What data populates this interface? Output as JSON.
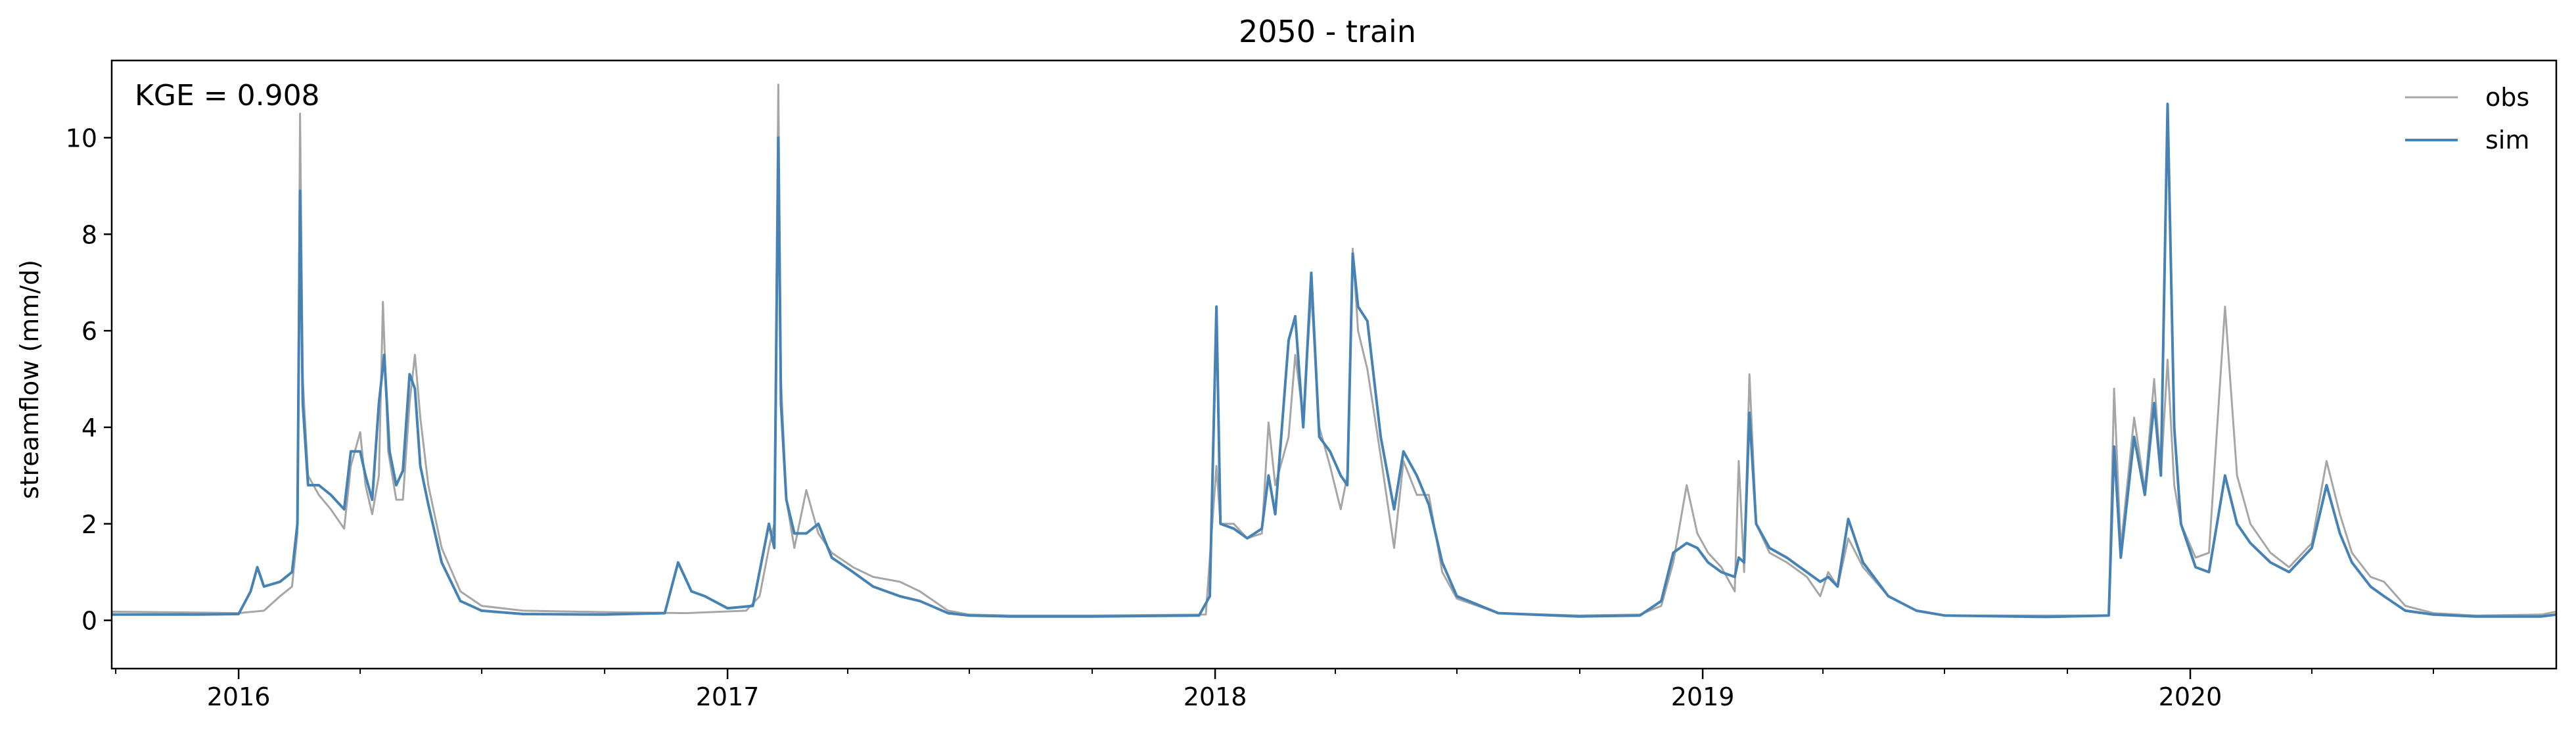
{
  "chart_data": {
    "type": "line",
    "title": "2050 - train",
    "ylabel": "streamflow (mm/d)",
    "xlabel": "",
    "annotation": "KGE = 0.908",
    "xlim": [
      "2015-09-28",
      "2020-10-01"
    ],
    "ylim": [
      -1,
      11.6
    ],
    "yticks": [
      0,
      2,
      4,
      6,
      8,
      10
    ],
    "xticks": [
      {
        "date": "2016-01-01",
        "label": "2016"
      },
      {
        "date": "2017-01-01",
        "label": "2017"
      },
      {
        "date": "2018-01-01",
        "label": "2018"
      },
      {
        "date": "2019-01-01",
        "label": "2019"
      },
      {
        "date": "2020-01-01",
        "label": "2020"
      }
    ],
    "grid": false,
    "legend_position": "top-right",
    "series": [
      {
        "name": "obs",
        "color": "#a6a6a6",
        "points": [
          [
            "2015-09-28",
            0.18
          ],
          [
            "2015-11-01",
            0.17
          ],
          [
            "2015-12-01",
            0.16
          ],
          [
            "2016-01-01",
            0.15
          ],
          [
            "2016-01-20",
            0.2
          ],
          [
            "2016-02-01",
            0.5
          ],
          [
            "2016-02-10",
            0.7
          ],
          [
            "2016-02-14",
            1.8
          ],
          [
            "2016-02-16",
            10.5
          ],
          [
            "2016-02-18",
            5.0
          ],
          [
            "2016-02-22",
            3.0
          ],
          [
            "2016-03-01",
            2.6
          ],
          [
            "2016-03-10",
            2.3
          ],
          [
            "2016-03-20",
            1.9
          ],
          [
            "2016-03-25",
            3.2
          ],
          [
            "2016-04-01",
            3.9
          ],
          [
            "2016-04-05",
            2.8
          ],
          [
            "2016-04-10",
            2.2
          ],
          [
            "2016-04-15",
            3.0
          ],
          [
            "2016-04-18",
            6.6
          ],
          [
            "2016-04-22",
            3.5
          ],
          [
            "2016-04-28",
            2.5
          ],
          [
            "2016-05-03",
            2.5
          ],
          [
            "2016-05-08",
            4.5
          ],
          [
            "2016-05-12",
            5.5
          ],
          [
            "2016-05-16",
            4.2
          ],
          [
            "2016-05-22",
            2.8
          ],
          [
            "2016-06-01",
            1.5
          ],
          [
            "2016-06-15",
            0.6
          ],
          [
            "2016-07-01",
            0.3
          ],
          [
            "2016-08-01",
            0.2
          ],
          [
            "2016-10-01",
            0.17
          ],
          [
            "2016-12-01",
            0.15
          ],
          [
            "2017-01-15",
            0.2
          ],
          [
            "2017-01-25",
            0.5
          ],
          [
            "2017-02-01",
            1.5
          ],
          [
            "2017-02-05",
            2.0
          ],
          [
            "2017-02-08",
            11.1
          ],
          [
            "2017-02-10",
            5.0
          ],
          [
            "2017-02-14",
            2.5
          ],
          [
            "2017-02-20",
            1.5
          ],
          [
            "2017-03-01",
            2.7
          ],
          [
            "2017-03-10",
            1.8
          ],
          [
            "2017-03-20",
            1.4
          ],
          [
            "2017-04-05",
            1.1
          ],
          [
            "2017-04-20",
            0.9
          ],
          [
            "2017-05-10",
            0.8
          ],
          [
            "2017-05-25",
            0.6
          ],
          [
            "2017-06-15",
            0.2
          ],
          [
            "2017-07-01",
            0.12
          ],
          [
            "2017-08-01",
            0.1
          ],
          [
            "2017-10-01",
            0.1
          ],
          [
            "2017-12-25",
            0.12
          ],
          [
            "2018-01-02",
            3.2
          ],
          [
            "2018-01-05",
            2.0
          ],
          [
            "2018-01-15",
            2.0
          ],
          [
            "2018-01-25",
            1.7
          ],
          [
            "2018-02-05",
            1.8
          ],
          [
            "2018-02-10",
            4.1
          ],
          [
            "2018-02-15",
            2.8
          ],
          [
            "2018-02-25",
            3.8
          ],
          [
            "2018-03-02",
            5.5
          ],
          [
            "2018-03-08",
            4.2
          ],
          [
            "2018-03-14",
            6.8
          ],
          [
            "2018-03-20",
            4.0
          ],
          [
            "2018-03-28",
            3.2
          ],
          [
            "2018-04-05",
            2.3
          ],
          [
            "2018-04-10",
            3.0
          ],
          [
            "2018-04-14",
            7.7
          ],
          [
            "2018-04-18",
            6.0
          ],
          [
            "2018-04-25",
            5.2
          ],
          [
            "2018-05-05",
            3.4
          ],
          [
            "2018-05-15",
            1.5
          ],
          [
            "2018-05-22",
            3.3
          ],
          [
            "2018-06-01",
            2.6
          ],
          [
            "2018-06-10",
            2.6
          ],
          [
            "2018-06-20",
            1.0
          ],
          [
            "2018-07-01",
            0.45
          ],
          [
            "2018-08-01",
            0.15
          ],
          [
            "2018-10-01",
            0.1
          ],
          [
            "2018-11-15",
            0.12
          ],
          [
            "2018-12-01",
            0.3
          ],
          [
            "2018-12-10",
            1.2
          ],
          [
            "2018-12-20",
            2.8
          ],
          [
            "2018-12-28",
            1.8
          ],
          [
            "2019-01-05",
            1.4
          ],
          [
            "2019-01-15",
            1.1
          ],
          [
            "2019-01-25",
            0.6
          ],
          [
            "2019-01-28",
            3.3
          ],
          [
            "2019-02-01",
            1.0
          ],
          [
            "2019-02-05",
            5.1
          ],
          [
            "2019-02-10",
            2.0
          ],
          [
            "2019-02-20",
            1.4
          ],
          [
            "2019-03-05",
            1.2
          ],
          [
            "2019-03-20",
            0.9
          ],
          [
            "2019-03-30",
            0.5
          ],
          [
            "2019-04-05",
            1.0
          ],
          [
            "2019-04-12",
            0.7
          ],
          [
            "2019-04-20",
            1.7
          ],
          [
            "2019-05-01",
            1.1
          ],
          [
            "2019-05-20",
            0.5
          ],
          [
            "2019-06-10",
            0.2
          ],
          [
            "2019-07-01",
            0.1
          ],
          [
            "2019-09-15",
            0.1
          ],
          [
            "2019-11-01",
            0.1
          ],
          [
            "2019-11-05",
            4.8
          ],
          [
            "2019-11-10",
            1.5
          ],
          [
            "2019-11-20",
            4.2
          ],
          [
            "2019-11-28",
            2.7
          ],
          [
            "2019-12-05",
            5.0
          ],
          [
            "2019-12-10",
            3.0
          ],
          [
            "2019-12-15",
            5.4
          ],
          [
            "2019-12-20",
            2.8
          ],
          [
            "2019-12-25",
            2.0
          ],
          [
            "2020-01-05",
            1.3
          ],
          [
            "2020-01-15",
            1.4
          ],
          [
            "2020-01-27",
            6.5
          ],
          [
            "2020-02-05",
            3.0
          ],
          [
            "2020-02-15",
            2.0
          ],
          [
            "2020-03-01",
            1.4
          ],
          [
            "2020-03-15",
            1.1
          ],
          [
            "2020-04-01",
            1.6
          ],
          [
            "2020-04-12",
            3.3
          ],
          [
            "2020-04-22",
            2.2
          ],
          [
            "2020-05-01",
            1.4
          ],
          [
            "2020-05-15",
            0.9
          ],
          [
            "2020-05-25",
            0.8
          ],
          [
            "2020-06-10",
            0.3
          ],
          [
            "2020-07-01",
            0.15
          ],
          [
            "2020-08-01",
            0.1
          ],
          [
            "2020-09-20",
            0.12
          ],
          [
            "2020-10-01",
            0.18
          ]
        ]
      },
      {
        "name": "sim",
        "color": "#4682b4",
        "points": [
          [
            "2015-09-28",
            0.12
          ],
          [
            "2015-11-01",
            0.12
          ],
          [
            "2015-12-01",
            0.12
          ],
          [
            "2016-01-01",
            0.13
          ],
          [
            "2016-01-10",
            0.6
          ],
          [
            "2016-01-15",
            1.1
          ],
          [
            "2016-01-20",
            0.7
          ],
          [
            "2016-02-01",
            0.8
          ],
          [
            "2016-02-10",
            1.0
          ],
          [
            "2016-02-14",
            2.0
          ],
          [
            "2016-02-16",
            8.9
          ],
          [
            "2016-02-18",
            4.5
          ],
          [
            "2016-02-22",
            2.8
          ],
          [
            "2016-03-01",
            2.8
          ],
          [
            "2016-03-10",
            2.6
          ],
          [
            "2016-03-20",
            2.3
          ],
          [
            "2016-03-25",
            3.5
          ],
          [
            "2016-04-01",
            3.5
          ],
          [
            "2016-04-05",
            3.0
          ],
          [
            "2016-04-10",
            2.5
          ],
          [
            "2016-04-15",
            4.5
          ],
          [
            "2016-04-19",
            5.5
          ],
          [
            "2016-04-23",
            3.5
          ],
          [
            "2016-04-28",
            2.8
          ],
          [
            "2016-05-03",
            3.1
          ],
          [
            "2016-05-08",
            5.1
          ],
          [
            "2016-05-12",
            4.8
          ],
          [
            "2016-05-16",
            3.2
          ],
          [
            "2016-05-22",
            2.4
          ],
          [
            "2016-06-01",
            1.2
          ],
          [
            "2016-06-15",
            0.4
          ],
          [
            "2016-07-01",
            0.2
          ],
          [
            "2016-08-01",
            0.13
          ],
          [
            "2016-10-01",
            0.12
          ],
          [
            "2016-11-15",
            0.15
          ],
          [
            "2016-11-25",
            1.2
          ],
          [
            "2016-12-05",
            0.6
          ],
          [
            "2016-12-15",
            0.5
          ],
          [
            "2017-01-01",
            0.25
          ],
          [
            "2017-01-20",
            0.3
          ],
          [
            "2017-02-01",
            2.0
          ],
          [
            "2017-02-05",
            1.5
          ],
          [
            "2017-02-08",
            10.0
          ],
          [
            "2017-02-10",
            4.5
          ],
          [
            "2017-02-14",
            2.5
          ],
          [
            "2017-02-20",
            1.8
          ],
          [
            "2017-03-01",
            1.8
          ],
          [
            "2017-03-10",
            2.0
          ],
          [
            "2017-03-20",
            1.3
          ],
          [
            "2017-04-05",
            1.0
          ],
          [
            "2017-04-20",
            0.7
          ],
          [
            "2017-05-10",
            0.5
          ],
          [
            "2017-05-25",
            0.4
          ],
          [
            "2017-06-15",
            0.15
          ],
          [
            "2017-07-01",
            0.1
          ],
          [
            "2017-08-01",
            0.08
          ],
          [
            "2017-10-01",
            0.08
          ],
          [
            "2017-12-20",
            0.1
          ],
          [
            "2017-12-28",
            0.5
          ],
          [
            "2018-01-02",
            6.5
          ],
          [
            "2018-01-05",
            2.0
          ],
          [
            "2018-01-15",
            1.9
          ],
          [
            "2018-01-25",
            1.7
          ],
          [
            "2018-02-05",
            1.9
          ],
          [
            "2018-02-10",
            3.0
          ],
          [
            "2018-02-15",
            2.2
          ],
          [
            "2018-02-25",
            5.8
          ],
          [
            "2018-03-02",
            6.3
          ],
          [
            "2018-03-08",
            4.0
          ],
          [
            "2018-03-14",
            7.2
          ],
          [
            "2018-03-20",
            3.8
          ],
          [
            "2018-03-28",
            3.5
          ],
          [
            "2018-04-05",
            3.0
          ],
          [
            "2018-04-10",
            2.8
          ],
          [
            "2018-04-14",
            7.6
          ],
          [
            "2018-04-18",
            6.5
          ],
          [
            "2018-04-25",
            6.2
          ],
          [
            "2018-05-05",
            3.8
          ],
          [
            "2018-05-15",
            2.3
          ],
          [
            "2018-05-22",
            3.5
          ],
          [
            "2018-06-01",
            3.0
          ],
          [
            "2018-06-10",
            2.4
          ],
          [
            "2018-06-20",
            1.2
          ],
          [
            "2018-07-01",
            0.5
          ],
          [
            "2018-08-01",
            0.15
          ],
          [
            "2018-10-01",
            0.08
          ],
          [
            "2018-11-15",
            0.1
          ],
          [
            "2018-12-01",
            0.4
          ],
          [
            "2018-12-10",
            1.4
          ],
          [
            "2018-12-20",
            1.6
          ],
          [
            "2018-12-28",
            1.5
          ],
          [
            "2019-01-05",
            1.2
          ],
          [
            "2019-01-15",
            1.0
          ],
          [
            "2019-01-25",
            0.9
          ],
          [
            "2019-01-28",
            1.3
          ],
          [
            "2019-02-01",
            1.2
          ],
          [
            "2019-02-05",
            4.3
          ],
          [
            "2019-02-10",
            2.0
          ],
          [
            "2019-02-20",
            1.5
          ],
          [
            "2019-03-05",
            1.3
          ],
          [
            "2019-03-20",
            1.0
          ],
          [
            "2019-03-30",
            0.8
          ],
          [
            "2019-04-05",
            0.9
          ],
          [
            "2019-04-12",
            0.7
          ],
          [
            "2019-04-20",
            2.1
          ],
          [
            "2019-05-01",
            1.2
          ],
          [
            "2019-05-20",
            0.5
          ],
          [
            "2019-06-10",
            0.2
          ],
          [
            "2019-07-01",
            0.1
          ],
          [
            "2019-09-15",
            0.07
          ],
          [
            "2019-11-01",
            0.1
          ],
          [
            "2019-11-05",
            3.6
          ],
          [
            "2019-11-10",
            1.3
          ],
          [
            "2019-11-20",
            3.8
          ],
          [
            "2019-11-28",
            2.6
          ],
          [
            "2019-12-05",
            4.5
          ],
          [
            "2019-12-10",
            3.0
          ],
          [
            "2019-12-15",
            10.7
          ],
          [
            "2019-12-20",
            4.0
          ],
          [
            "2019-12-25",
            2.0
          ],
          [
            "2020-01-05",
            1.1
          ],
          [
            "2020-01-15",
            1.0
          ],
          [
            "2020-01-27",
            3.0
          ],
          [
            "2020-02-05",
            2.0
          ],
          [
            "2020-02-15",
            1.6
          ],
          [
            "2020-03-01",
            1.2
          ],
          [
            "2020-03-15",
            1.0
          ],
          [
            "2020-04-01",
            1.5
          ],
          [
            "2020-04-12",
            2.8
          ],
          [
            "2020-04-22",
            1.8
          ],
          [
            "2020-05-01",
            1.2
          ],
          [
            "2020-05-15",
            0.7
          ],
          [
            "2020-05-25",
            0.5
          ],
          [
            "2020-06-10",
            0.2
          ],
          [
            "2020-07-01",
            0.12
          ],
          [
            "2020-08-01",
            0.08
          ],
          [
            "2020-09-20",
            0.08
          ],
          [
            "2020-10-01",
            0.12
          ]
        ]
      }
    ]
  }
}
